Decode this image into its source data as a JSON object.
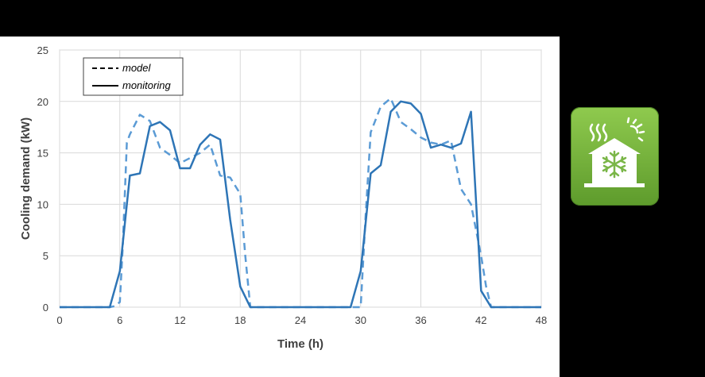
{
  "chart_data": {
    "type": "line",
    "title": "",
    "xlabel": "Time (h)",
    "ylabel": "Cooling demand (kW)",
    "xlim": [
      0,
      48
    ],
    "ylim": [
      0,
      25
    ],
    "xticks": [
      0,
      6,
      12,
      18,
      24,
      30,
      36,
      42,
      48
    ],
    "yticks": [
      0,
      5,
      10,
      15,
      20,
      25
    ],
    "grid": true,
    "legend_position": "top-left",
    "series": [
      {
        "name": "model",
        "style": "dashed",
        "color": "#5b9bd5",
        "points": [
          [
            0,
            0
          ],
          [
            5,
            0
          ],
          [
            5.5,
            0.1
          ],
          [
            6,
            0.5
          ],
          [
            6.3,
            6
          ],
          [
            6.7,
            16
          ],
          [
            7,
            16.8
          ],
          [
            8,
            18.7
          ],
          [
            9,
            18.1
          ],
          [
            10,
            15.5
          ],
          [
            11,
            14.8
          ],
          [
            12,
            14
          ],
          [
            13,
            14.5
          ],
          [
            14,
            15
          ],
          [
            15,
            15.8
          ],
          [
            16,
            12.8
          ],
          [
            17,
            12.6
          ],
          [
            18,
            11
          ],
          [
            18.5,
            5
          ],
          [
            19,
            0
          ],
          [
            24,
            0
          ],
          [
            29,
            0
          ],
          [
            30,
            0
          ],
          [
            30.5,
            9
          ],
          [
            31,
            17
          ],
          [
            32,
            19.5
          ],
          [
            33,
            20.3
          ],
          [
            34,
            18
          ],
          [
            35,
            17.3
          ],
          [
            36,
            16.5
          ],
          [
            37,
            16
          ],
          [
            38,
            15.8
          ],
          [
            39,
            16.2
          ],
          [
            40,
            11.5
          ],
          [
            41,
            10
          ],
          [
            42,
            5
          ],
          [
            42.5,
            2
          ],
          [
            43,
            0
          ],
          [
            48,
            0
          ]
        ]
      },
      {
        "name": "monitoring",
        "style": "solid",
        "color": "#2e75b6",
        "points": [
          [
            0,
            0
          ],
          [
            5,
            0
          ],
          [
            6,
            3.5
          ],
          [
            7,
            12.8
          ],
          [
            8,
            13
          ],
          [
            9,
            17.6
          ],
          [
            10,
            18
          ],
          [
            11,
            17.2
          ],
          [
            12,
            13.5
          ],
          [
            13,
            13.5
          ],
          [
            14,
            15.8
          ],
          [
            15,
            16.8
          ],
          [
            16,
            16.3
          ],
          [
            17,
            8.5
          ],
          [
            18,
            2
          ],
          [
            19,
            0
          ],
          [
            24,
            0
          ],
          [
            29,
            0
          ],
          [
            30,
            3.5
          ],
          [
            31,
            13
          ],
          [
            32,
            13.8
          ],
          [
            33,
            19
          ],
          [
            34,
            20
          ],
          [
            35,
            19.8
          ],
          [
            36,
            18.8
          ],
          [
            37,
            15.5
          ],
          [
            38,
            15.8
          ],
          [
            39,
            15.5
          ],
          [
            40,
            15.9
          ],
          [
            41,
            19
          ],
          [
            42,
            1.6
          ],
          [
            43,
            0
          ],
          [
            48,
            0
          ]
        ]
      }
    ]
  },
  "icon": {
    "name": "building-cooling-icon",
    "colors": {
      "tile": "#7ab648",
      "glyph": "#ffffff",
      "snowflake": "#7ab648"
    }
  }
}
